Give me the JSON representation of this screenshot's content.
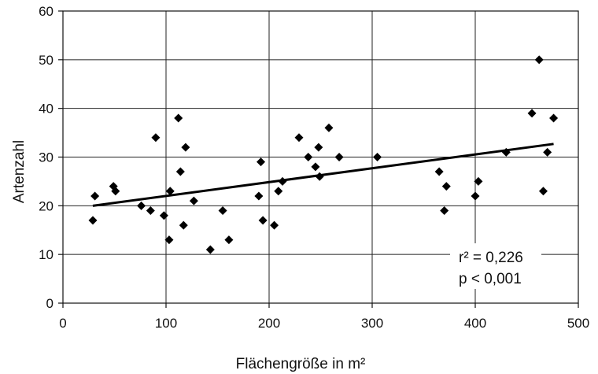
{
  "chart_data": {
    "type": "scatter",
    "title": "",
    "xlabel": "Flächengröße in m²",
    "ylabel": "Artenzahl",
    "xlim": [
      0,
      500
    ],
    "ylim": [
      0,
      60
    ],
    "xticks": [
      0,
      100,
      200,
      300,
      400,
      500
    ],
    "yticks": [
      0,
      10,
      20,
      30,
      40,
      50,
      60
    ],
    "grid": true,
    "marker": "diamond",
    "marker_color": "#000000",
    "points": [
      {
        "x": 29,
        "y": 17
      },
      {
        "x": 31,
        "y": 22
      },
      {
        "x": 49,
        "y": 24
      },
      {
        "x": 51,
        "y": 23
      },
      {
        "x": 76,
        "y": 20
      },
      {
        "x": 85,
        "y": 19
      },
      {
        "x": 90,
        "y": 34
      },
      {
        "x": 98,
        "y": 18
      },
      {
        "x": 103,
        "y": 13
      },
      {
        "x": 104,
        "y": 23
      },
      {
        "x": 112,
        "y": 38
      },
      {
        "x": 114,
        "y": 27
      },
      {
        "x": 117,
        "y": 16
      },
      {
        "x": 119,
        "y": 32
      },
      {
        "x": 127,
        "y": 21
      },
      {
        "x": 143,
        "y": 11
      },
      {
        "x": 155,
        "y": 19
      },
      {
        "x": 161,
        "y": 13
      },
      {
        "x": 190,
        "y": 22
      },
      {
        "x": 192,
        "y": 29
      },
      {
        "x": 194,
        "y": 17
      },
      {
        "x": 205,
        "y": 16
      },
      {
        "x": 209,
        "y": 23
      },
      {
        "x": 213,
        "y": 25
      },
      {
        "x": 229,
        "y": 34
      },
      {
        "x": 238,
        "y": 30
      },
      {
        "x": 245,
        "y": 28
      },
      {
        "x": 248,
        "y": 32
      },
      {
        "x": 249,
        "y": 26
      },
      {
        "x": 258,
        "y": 36
      },
      {
        "x": 268,
        "y": 30
      },
      {
        "x": 305,
        "y": 30
      },
      {
        "x": 365,
        "y": 27
      },
      {
        "x": 370,
        "y": 19
      },
      {
        "x": 372,
        "y": 24
      },
      {
        "x": 400,
        "y": 22
      },
      {
        "x": 403,
        "y": 25
      },
      {
        "x": 430,
        "y": 31
      },
      {
        "x": 455,
        "y": 39
      },
      {
        "x": 462,
        "y": 50
      },
      {
        "x": 466,
        "y": 23
      },
      {
        "x": 470,
        "y": 31
      },
      {
        "x": 476,
        "y": 38
      }
    ],
    "trendline": {
      "x": [
        29,
        476
      ],
      "y": [
        20,
        32.7
      ]
    },
    "annotations": [
      "r² = 0,226",
      "p < 0,001"
    ]
  }
}
